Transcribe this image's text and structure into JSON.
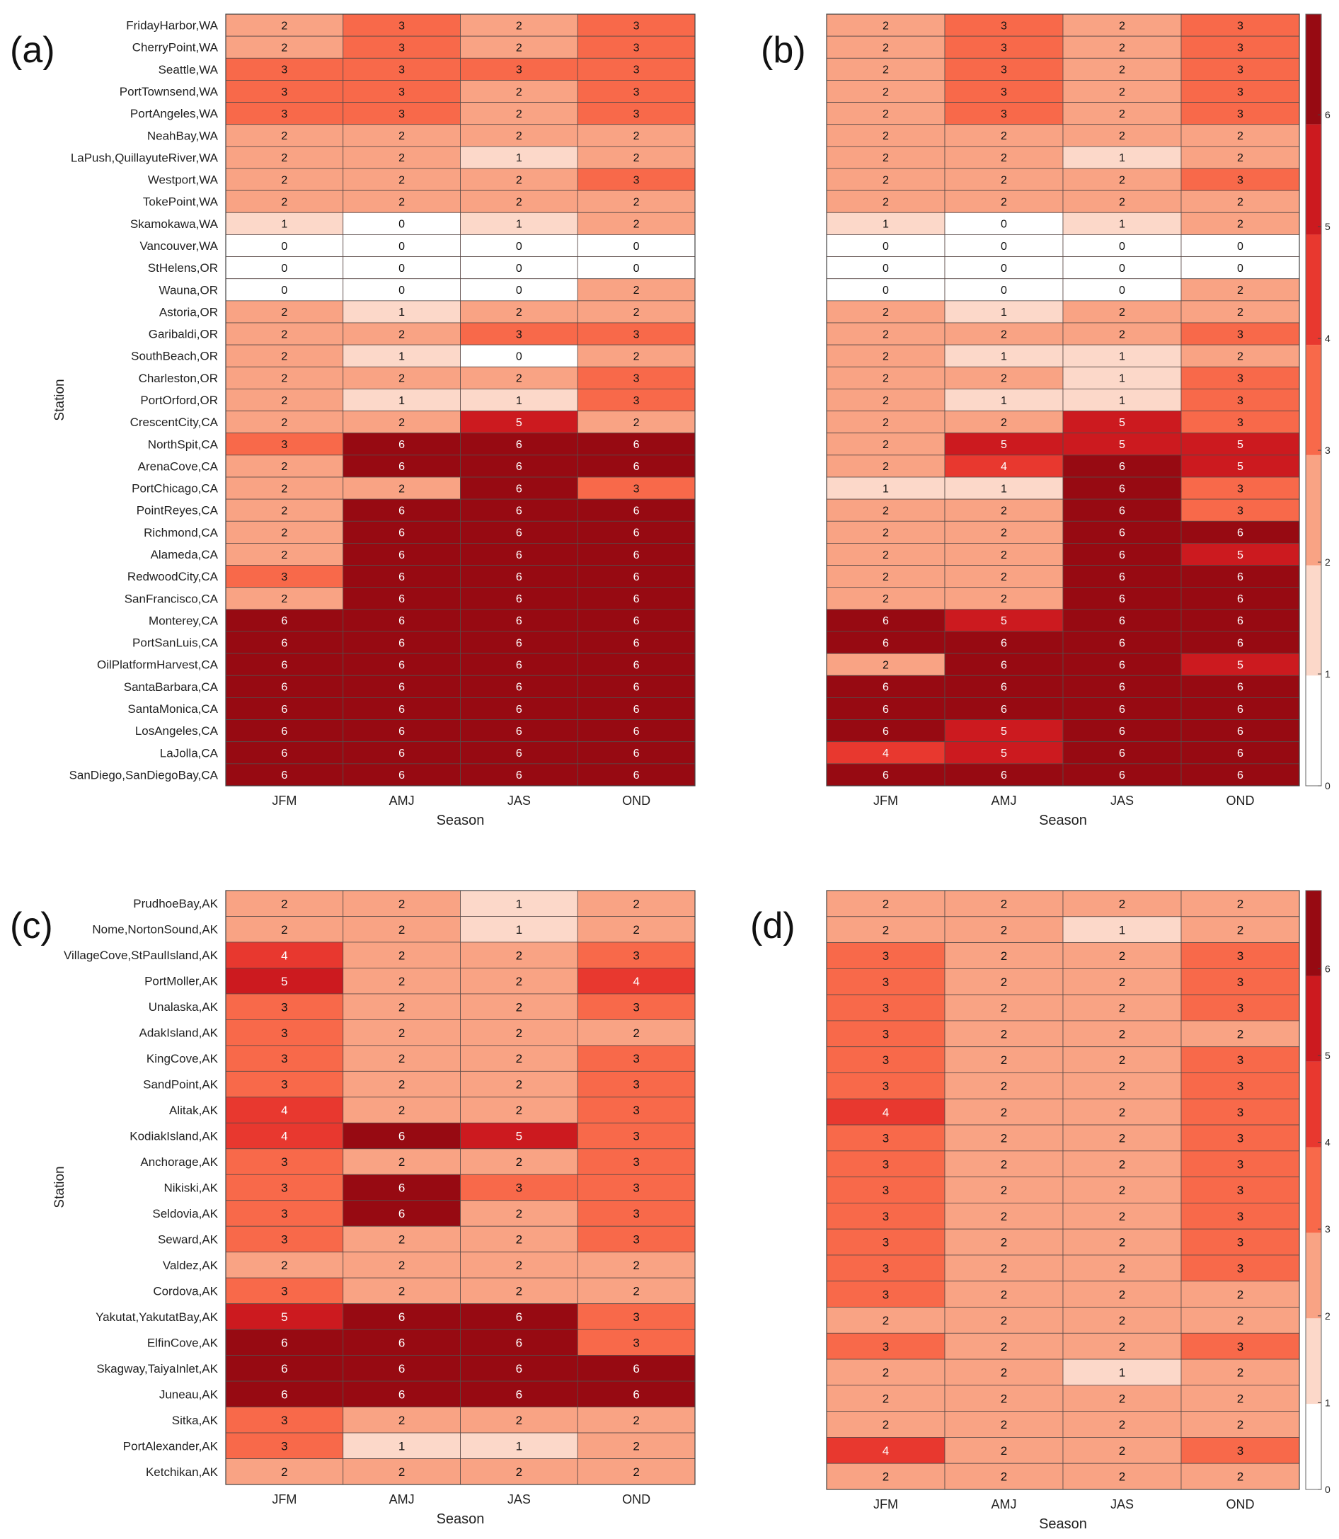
{
  "color_scale": {
    "levels": [
      0,
      1,
      2,
      3,
      4,
      5,
      6
    ],
    "colors": [
      "#ffffff",
      "#fcd8c9",
      "#f9a384",
      "#f8694a",
      "#e8382f",
      "#cc1a1f",
      "#970a12"
    ],
    "ticks": [
      "0",
      "1",
      "2",
      "3",
      "4",
      "5",
      "6"
    ]
  },
  "chart_data": [
    {
      "panel": "(a)",
      "type": "heatmap",
      "xlabel": "Season",
      "ylabel": "Station",
      "seasons": [
        "JFM",
        "AMJ",
        "JAS",
        "OND"
      ],
      "stations": [
        "FridayHarbor,WA",
        "CherryPoint,WA",
        "Seattle,WA",
        "PortTownsend,WA",
        "PortAngeles,WA",
        "NeahBay,WA",
        "LaPush,QuillayuteRiver,WA",
        "Westport,WA",
        "TokePoint,WA",
        "Skamokawa,WA",
        "Vancouver,WA",
        "StHelens,OR",
        "Wauna,OR",
        "Astoria,OR",
        "Garibaldi,OR",
        "SouthBeach,OR",
        "Charleston,OR",
        "PortOrford,OR",
        "CrescentCity,CA",
        "NorthSpit,CA",
        "ArenaCove,CA",
        "PortChicago,CA",
        "PointReyes,CA",
        "Richmond,CA",
        "Alameda,CA",
        "RedwoodCity,CA",
        "SanFrancisco,CA",
        "Monterey,CA",
        "PortSanLuis,CA",
        "OilPlatformHarvest,CA",
        "SantaBarbara,CA",
        "SantaMonica,CA",
        "LosAngeles,CA",
        "LaJolla,CA",
        "SanDiego,SanDiegoBay,CA"
      ],
      "values": [
        [
          2,
          3,
          2,
          3
        ],
        [
          2,
          3,
          2,
          3
        ],
        [
          3,
          3,
          3,
          3
        ],
        [
          3,
          3,
          2,
          3
        ],
        [
          3,
          3,
          2,
          3
        ],
        [
          2,
          2,
          2,
          2
        ],
        [
          2,
          2,
          1,
          2
        ],
        [
          2,
          2,
          2,
          3
        ],
        [
          2,
          2,
          2,
          2
        ],
        [
          1,
          0,
          1,
          2
        ],
        [
          0,
          0,
          0,
          0
        ],
        [
          0,
          0,
          0,
          0
        ],
        [
          0,
          0,
          0,
          2
        ],
        [
          2,
          1,
          2,
          2
        ],
        [
          2,
          2,
          3,
          3
        ],
        [
          2,
          1,
          0,
          2
        ],
        [
          2,
          2,
          2,
          3
        ],
        [
          2,
          1,
          1,
          3
        ],
        [
          2,
          2,
          5,
          2
        ],
        [
          3,
          6,
          6,
          6
        ],
        [
          2,
          6,
          6,
          6
        ],
        [
          2,
          2,
          6,
          3
        ],
        [
          2,
          6,
          6,
          6
        ],
        [
          2,
          6,
          6,
          6
        ],
        [
          2,
          6,
          6,
          6
        ],
        [
          3,
          6,
          6,
          6
        ],
        [
          2,
          6,
          6,
          6
        ],
        [
          6,
          6,
          6,
          6
        ],
        [
          6,
          6,
          6,
          6
        ],
        [
          6,
          6,
          6,
          6
        ],
        [
          6,
          6,
          6,
          6
        ],
        [
          6,
          6,
          6,
          6
        ],
        [
          6,
          6,
          6,
          6
        ],
        [
          6,
          6,
          6,
          6
        ],
        [
          6,
          6,
          6,
          6
        ]
      ]
    },
    {
      "panel": "(b)",
      "type": "heatmap",
      "xlabel": "Season",
      "ylabel": "",
      "seasons": [
        "JFM",
        "AMJ",
        "JAS",
        "OND"
      ],
      "stations": [],
      "values": [
        [
          2,
          3,
          2,
          3
        ],
        [
          2,
          3,
          2,
          3
        ],
        [
          2,
          3,
          2,
          3
        ],
        [
          2,
          3,
          2,
          3
        ],
        [
          2,
          3,
          2,
          3
        ],
        [
          2,
          2,
          2,
          2
        ],
        [
          2,
          2,
          1,
          2
        ],
        [
          2,
          2,
          2,
          3
        ],
        [
          2,
          2,
          2,
          2
        ],
        [
          1,
          0,
          1,
          2
        ],
        [
          0,
          0,
          0,
          0
        ],
        [
          0,
          0,
          0,
          0
        ],
        [
          0,
          0,
          0,
          2
        ],
        [
          2,
          1,
          2,
          2
        ],
        [
          2,
          2,
          2,
          3
        ],
        [
          2,
          1,
          1,
          2
        ],
        [
          2,
          2,
          1,
          3
        ],
        [
          2,
          1,
          1,
          3
        ],
        [
          2,
          2,
          5,
          3
        ],
        [
          2,
          5,
          5,
          5
        ],
        [
          2,
          4,
          6,
          5
        ],
        [
          1,
          1,
          6,
          3
        ],
        [
          2,
          2,
          6,
          3
        ],
        [
          2,
          2,
          6,
          6
        ],
        [
          2,
          2,
          6,
          5
        ],
        [
          2,
          2,
          6,
          6
        ],
        [
          2,
          2,
          6,
          6
        ],
        [
          6,
          5,
          6,
          6
        ],
        [
          6,
          6,
          6,
          6
        ],
        [
          2,
          6,
          6,
          5
        ],
        [
          6,
          6,
          6,
          6
        ],
        [
          6,
          6,
          6,
          6
        ],
        [
          6,
          5,
          6,
          6
        ],
        [
          4,
          5,
          6,
          6
        ],
        [
          6,
          6,
          6,
          6
        ]
      ]
    },
    {
      "panel": "(c)",
      "type": "heatmap",
      "xlabel": "Season",
      "ylabel": "Station",
      "seasons": [
        "JFM",
        "AMJ",
        "JAS",
        "OND"
      ],
      "stations": [
        "PrudhoeBay,AK",
        "Nome,NortonSound,AK",
        "VillageCove,StPaulIsland,AK",
        "PortMoller,AK",
        "Unalaska,AK",
        "AdakIsland,AK",
        "KingCove,AK",
        "SandPoint,AK",
        "Alitak,AK",
        "KodiakIsland,AK",
        "Anchorage,AK",
        "Nikiski,AK",
        "Seldovia,AK",
        "Seward,AK",
        "Valdez,AK",
        "Cordova,AK",
        "Yakutat,YakutatBay,AK",
        "ElfinCove,AK",
        "Skagway,TaiyaInlet,AK",
        "Juneau,AK",
        "Sitka,AK",
        "PortAlexander,AK",
        "Ketchikan,AK"
      ],
      "values": [
        [
          2,
          2,
          1,
          2
        ],
        [
          2,
          2,
          1,
          2
        ],
        [
          4,
          2,
          2,
          3
        ],
        [
          5,
          2,
          2,
          4
        ],
        [
          3,
          2,
          2,
          3
        ],
        [
          3,
          2,
          2,
          2
        ],
        [
          3,
          2,
          2,
          3
        ],
        [
          3,
          2,
          2,
          3
        ],
        [
          4,
          2,
          2,
          3
        ],
        [
          4,
          6,
          5,
          3
        ],
        [
          3,
          2,
          2,
          3
        ],
        [
          3,
          6,
          3,
          3
        ],
        [
          3,
          6,
          2,
          3
        ],
        [
          3,
          2,
          2,
          3
        ],
        [
          2,
          2,
          2,
          2
        ],
        [
          3,
          2,
          2,
          2
        ],
        [
          5,
          6,
          6,
          3
        ],
        [
          6,
          6,
          6,
          3
        ],
        [
          6,
          6,
          6,
          6
        ],
        [
          6,
          6,
          6,
          6
        ],
        [
          3,
          2,
          2,
          2
        ],
        [
          3,
          1,
          1,
          2
        ],
        [
          2,
          2,
          2,
          2
        ]
      ]
    },
    {
      "panel": "(d)",
      "type": "heatmap",
      "xlabel": "Season",
      "ylabel": "",
      "seasons": [
        "JFM",
        "AMJ",
        "JAS",
        "OND"
      ],
      "stations": [],
      "values": [
        [
          2,
          2,
          2,
          2
        ],
        [
          2,
          2,
          1,
          2
        ],
        [
          3,
          2,
          2,
          3
        ],
        [
          3,
          2,
          2,
          3
        ],
        [
          3,
          2,
          2,
          3
        ],
        [
          3,
          2,
          2,
          2
        ],
        [
          3,
          2,
          2,
          3
        ],
        [
          3,
          2,
          2,
          3
        ],
        [
          4,
          2,
          2,
          3
        ],
        [
          3,
          2,
          2,
          3
        ],
        [
          3,
          2,
          2,
          3
        ],
        [
          3,
          2,
          2,
          3
        ],
        [
          3,
          2,
          2,
          3
        ],
        [
          3,
          2,
          2,
          3
        ],
        [
          3,
          2,
          2,
          3
        ],
        [
          3,
          2,
          2,
          2
        ],
        [
          2,
          2,
          2,
          2
        ],
        [
          3,
          2,
          2,
          3
        ],
        [
          2,
          2,
          1,
          2
        ],
        [
          2,
          2,
          2,
          2
        ],
        [
          2,
          2,
          2,
          2
        ],
        [
          4,
          2,
          2,
          3
        ],
        [
          2,
          2,
          2,
          2
        ]
      ]
    }
  ]
}
